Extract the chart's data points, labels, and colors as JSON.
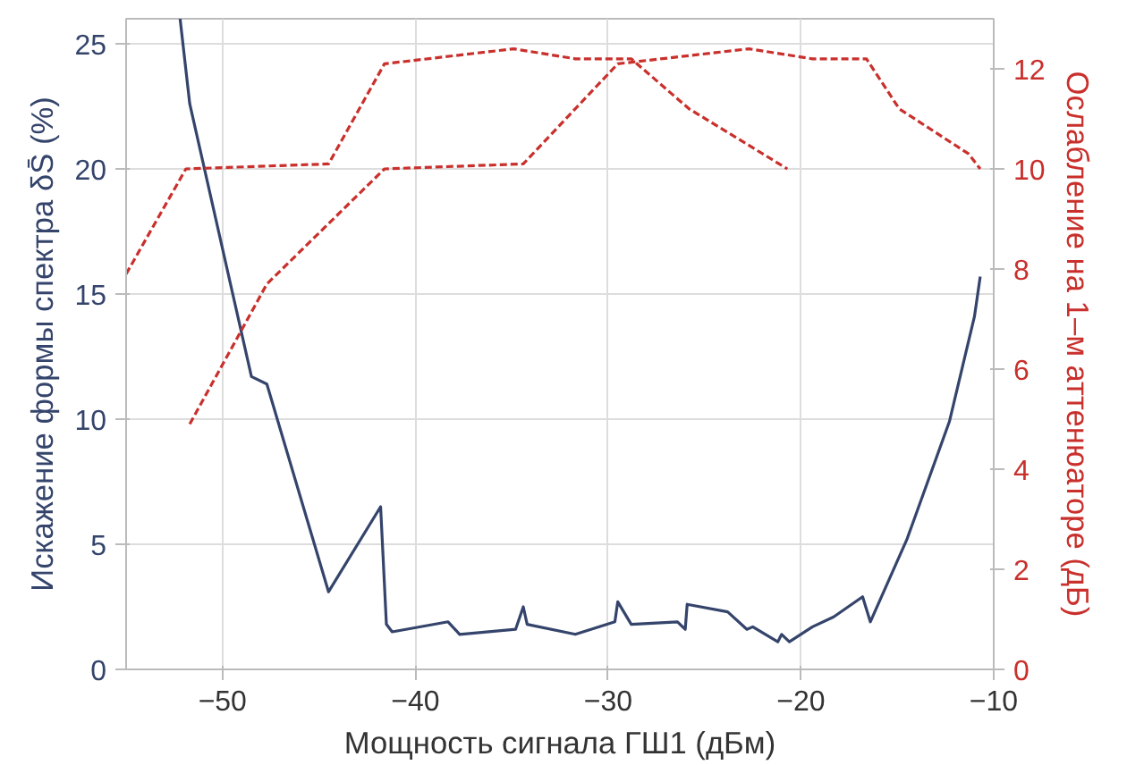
{
  "chart_data": {
    "type": "line",
    "xlabel": "Мощность сигнала ГШ1 (дБм)",
    "ylabel": "Искажение формы спектра δS̄ (%)",
    "y2label": "Ослабление на 1–м аттенюаторе (дБ)",
    "xlim": [
      -55,
      -10
    ],
    "xticks": [
      {
        "value": -50,
        "label": "−50"
      },
      {
        "value": -40,
        "label": "−40"
      },
      {
        "value": -30,
        "label": "−30"
      },
      {
        "value": -20,
        "label": "−20"
      },
      {
        "value": -10,
        "label": "−10"
      }
    ],
    "ylim": [
      0,
      26
    ],
    "yticks": [
      0,
      5,
      10,
      15,
      20,
      25
    ],
    "y2lim": [
      0,
      13
    ],
    "y2ticks": [
      0,
      2,
      4,
      6,
      8,
      10,
      12
    ],
    "grid": true,
    "series": [
      {
        "color": "#34446b",
        "line_style": "solid",
        "x": [
          -52.2,
          -51.7,
          -48.5,
          -47.7,
          -44.5,
          -41.8,
          -41.5,
          -41.2,
          -38.3,
          -37.7,
          -34.8,
          -34.4,
          -34.2,
          -31.7,
          -29.65,
          -29.5,
          -28.8,
          -26.4,
          -26.0,
          -25.9,
          -23.8,
          -22.8,
          -22.5,
          -21.2,
          -21.0,
          -20.6,
          -19.4,
          -18.3,
          -16.8,
          -16.4,
          -14.5,
          -12.3,
          -11.0,
          -10.7
        ],
        "values": [
          26.0,
          22.6,
          11.7,
          11.4,
          3.1,
          6.5,
          1.8,
          1.5,
          1.9,
          1.4,
          1.6,
          2.5,
          1.8,
          1.4,
          1.9,
          2.7,
          1.8,
          1.9,
          1.6,
          2.6,
          2.3,
          1.6,
          1.7,
          1.1,
          1.4,
          1.1,
          1.7,
          2.1,
          2.9,
          1.9,
          5.2,
          9.9,
          14.1,
          15.7
        ]
      },
      {
        "color": "#c9302c",
        "line_style": "dashed",
        "axis": "y2",
        "x": [
          -55,
          -51.9,
          -44.5,
          -41.6,
          -34.9,
          -31.7,
          -28.8,
          -25.8,
          -20.7
        ],
        "values": [
          7.9,
          10.0,
          10.1,
          12.1,
          12.4,
          12.2,
          12.2,
          11.2,
          10.0
        ]
      },
      {
        "color": "#c9302c",
        "line_style": "dashed",
        "axis": "y2",
        "x": [
          -51.7,
          -47.7,
          -41.6,
          -34.4,
          -29.5,
          -22.7,
          -19.4,
          -16.6,
          -14.9,
          -11.3,
          -10.7
        ],
        "values": [
          4.9,
          7.7,
          10.0,
          10.1,
          12.1,
          12.4,
          12.2,
          12.2,
          11.2,
          10.3,
          10.0
        ]
      }
    ]
  }
}
